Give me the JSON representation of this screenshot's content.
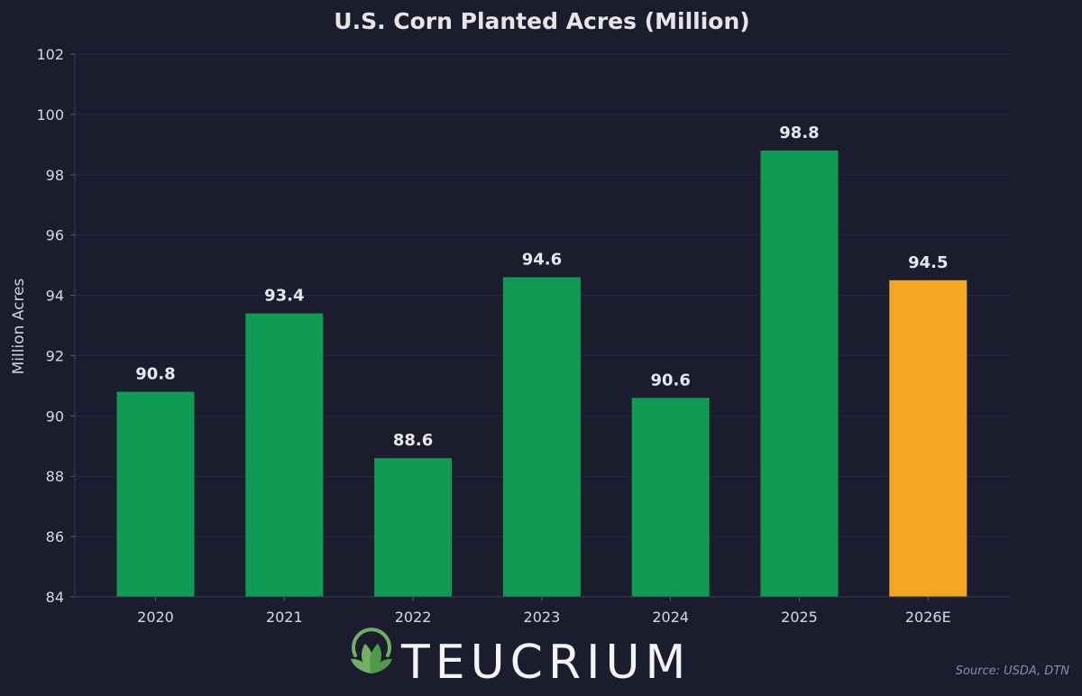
{
  "chart_data": {
    "type": "bar",
    "title": "U.S. Corn Planted Acres (Million)",
    "ylabel": "Million Acres",
    "xlabel": "",
    "categories": [
      "2020",
      "2021",
      "2022",
      "2023",
      "2024",
      "2025",
      "2026E"
    ],
    "values": [
      90.8,
      93.4,
      88.6,
      94.6,
      90.6,
      98.8,
      94.5
    ],
    "data_labels": [
      "90.8",
      "93.4",
      "88.6",
      "94.6",
      "90.6",
      "98.8",
      "94.5"
    ],
    "ylim": [
      84,
      102
    ],
    "yticks": [
      84,
      86,
      88,
      90,
      92,
      94,
      96,
      98,
      100,
      102
    ],
    "grid": true,
    "colors": {
      "actual": "#0f9b53",
      "estimate": "#f5a623",
      "background": "#1b1c2e",
      "grid": "#262841"
    },
    "highlight_category": "2026E"
  },
  "branding": {
    "logo_text": "TEUCRIUM",
    "logo_icon": "leaf-circle-icon"
  },
  "source": "Source: USDA, DTN"
}
